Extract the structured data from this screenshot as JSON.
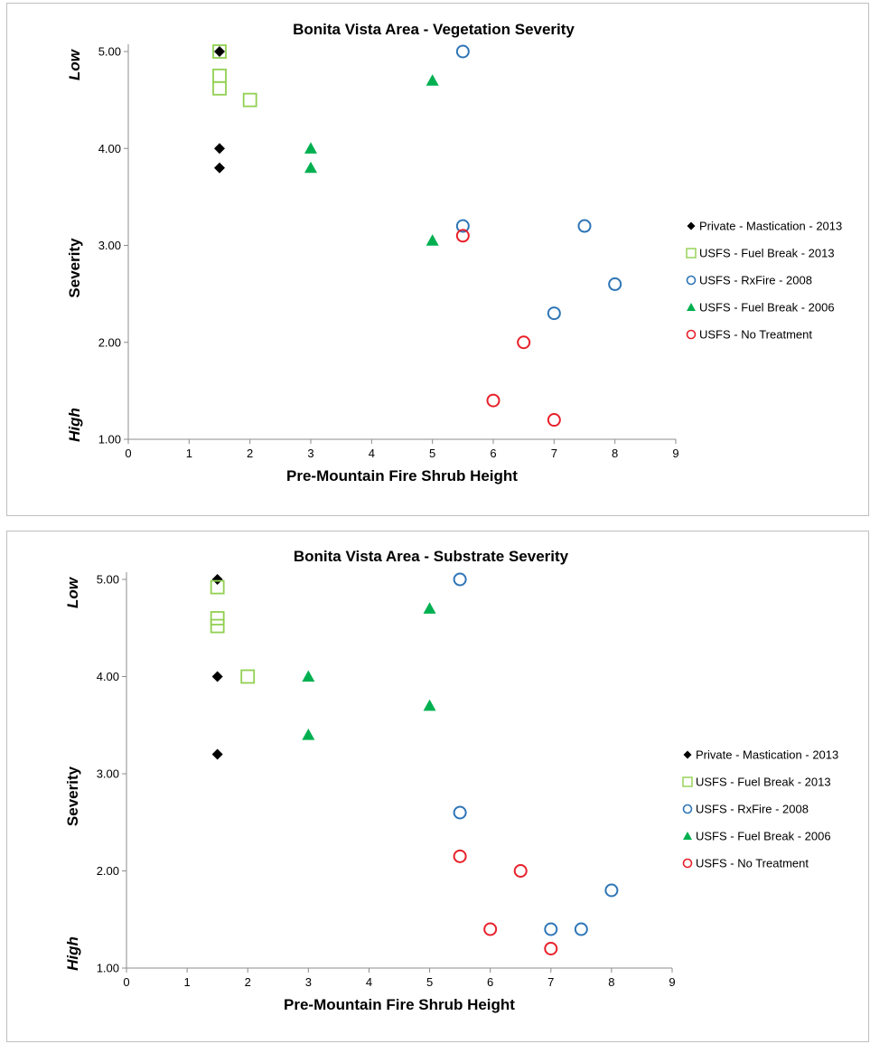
{
  "chart_data": [
    {
      "type": "scatter",
      "title": "Bonita Vista Area - Vegetation Severity",
      "xlabel": "Pre-Mountain Fire Shrub Height",
      "ylabel": "Severity",
      "y_band_labels": {
        "top": "Low",
        "bottom": "High"
      },
      "xlim": [
        0,
        9
      ],
      "ylim": [
        1,
        5
      ],
      "x_ticks": [
        "0",
        "1",
        "2",
        "3",
        "4",
        "5",
        "6",
        "7",
        "8",
        "9"
      ],
      "y_ticks": [
        "1.00",
        "2.00",
        "3.00",
        "4.00",
        "5.00"
      ],
      "grid": false,
      "legend": "right",
      "series": [
        {
          "name": "Private - Mastication - 2013",
          "marker": "diamond-filled",
          "color": "#000000",
          "points": [
            [
              1.5,
              5.0
            ],
            [
              1.5,
              4.0
            ],
            [
              1.5,
              3.8
            ]
          ]
        },
        {
          "name": "USFS - Fuel Break - 2013",
          "marker": "square-open",
          "color": "#92d050",
          "points": [
            [
              1.5,
              5.0
            ],
            [
              1.5,
              4.75
            ],
            [
              1.5,
              4.62
            ],
            [
              2.0,
              4.5
            ]
          ]
        },
        {
          "name": "USFS - RxFire - 2008",
          "marker": "circle-open",
          "color": "#2e75b6",
          "points": [
            [
              5.5,
              5.0
            ],
            [
              5.5,
              3.2
            ],
            [
              7.5,
              3.2
            ],
            [
              8.0,
              2.6
            ],
            [
              7.0,
              2.3
            ]
          ]
        },
        {
          "name": "USFS - Fuel Break - 2006",
          "marker": "triangle-filled",
          "color": "#00b050",
          "points": [
            [
              5.0,
              4.7
            ],
            [
              3.0,
              4.0
            ],
            [
              3.0,
              3.8
            ],
            [
              5.0,
              3.05
            ]
          ]
        },
        {
          "name": "USFS - No Treatment",
          "marker": "circle-open",
          "color": "#e8202a",
          "points": [
            [
              5.5,
              3.1
            ],
            [
              6.5,
              2.0
            ],
            [
              6.0,
              1.4
            ],
            [
              7.0,
              1.2
            ]
          ]
        }
      ]
    },
    {
      "type": "scatter",
      "title": "Bonita Vista Area - Substrate Severity",
      "xlabel": "Pre-Mountain Fire Shrub Height",
      "ylabel": "Severity",
      "y_band_labels": {
        "top": "Low",
        "bottom": "High"
      },
      "xlim": [
        0,
        9
      ],
      "ylim": [
        1,
        5
      ],
      "x_ticks": [
        "0",
        "1",
        "2",
        "3",
        "4",
        "5",
        "6",
        "7",
        "8",
        "9"
      ],
      "y_ticks": [
        "1.00",
        "2.00",
        "3.00",
        "4.00",
        "5.00"
      ],
      "grid": false,
      "legend": "right",
      "series": [
        {
          "name": "Private - Mastication - 2013",
          "marker": "diamond-filled",
          "color": "#000000",
          "points": [
            [
              1.5,
              5.0
            ],
            [
              1.5,
              4.0
            ],
            [
              1.5,
              3.2
            ]
          ]
        },
        {
          "name": "USFS - Fuel Break - 2013",
          "marker": "square-open",
          "color": "#92d050",
          "points": [
            [
              1.5,
              4.92
            ],
            [
              1.5,
              4.6
            ],
            [
              1.5,
              4.52
            ],
            [
              2.0,
              4.0
            ]
          ]
        },
        {
          "name": "USFS - RxFire - 2008",
          "marker": "circle-open",
          "color": "#2e75b6",
          "points": [
            [
              5.5,
              5.0
            ],
            [
              5.5,
              2.6
            ],
            [
              8.0,
              1.8
            ],
            [
              7.0,
              1.4
            ],
            [
              7.5,
              1.4
            ]
          ]
        },
        {
          "name": "USFS - Fuel Break - 2006",
          "marker": "triangle-filled",
          "color": "#00b050",
          "points": [
            [
              5.0,
              4.7
            ],
            [
              3.0,
              4.0
            ],
            [
              5.0,
              3.7
            ],
            [
              3.0,
              3.4
            ]
          ]
        },
        {
          "name": "USFS - No Treatment",
          "marker": "circle-open",
          "color": "#e8202a",
          "points": [
            [
              5.5,
              2.15
            ],
            [
              6.5,
              2.0
            ],
            [
              6.0,
              1.4
            ],
            [
              7.0,
              1.2
            ]
          ]
        }
      ]
    }
  ]
}
